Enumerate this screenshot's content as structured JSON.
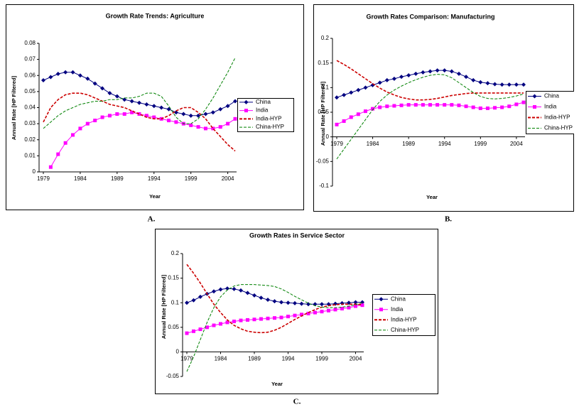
{
  "chart_data": [
    {
      "type": "line",
      "title": "Growth Rate Trends: Agriculture",
      "caption": "A.",
      "xlabel": "Year",
      "ylabel": "Annual Rate [HP Filtered]",
      "x": [
        1979,
        1980,
        1981,
        1982,
        1983,
        1984,
        1985,
        1986,
        1987,
        1988,
        1989,
        1990,
        1991,
        1992,
        1993,
        1994,
        1995,
        1996,
        1997,
        1998,
        1999,
        2000,
        2001,
        2002,
        2003,
        2004,
        2005
      ],
      "xlim": [
        1979,
        2005
      ],
      "xticks": [
        1979,
        1984,
        1989,
        1994,
        1999,
        2004
      ],
      "ylim": [
        0,
        0.08
      ],
      "yticks": [
        0,
        0.01,
        0.02,
        0.03,
        0.04,
        0.05,
        0.06,
        0.07,
        0.08
      ],
      "grid": false,
      "legend": "right",
      "series": [
        {
          "name": "China",
          "color": "#000080",
          "marker": "diamond",
          "dashed": false,
          "values": [
            0.057,
            0.059,
            0.061,
            0.062,
            0.062,
            0.06,
            0.058,
            0.055,
            0.052,
            0.049,
            0.047,
            0.045,
            0.044,
            0.043,
            0.042,
            0.041,
            0.04,
            0.039,
            0.037,
            0.036,
            0.035,
            0.035,
            0.036,
            0.037,
            0.039,
            0.041,
            0.044
          ]
        },
        {
          "name": "India",
          "color": "#ff00ff",
          "marker": "square",
          "dashed": false,
          "values": [
            null,
            0.003,
            0.011,
            0.018,
            0.023,
            0.027,
            0.03,
            0.032,
            0.034,
            0.035,
            0.036,
            0.036,
            0.037,
            0.036,
            0.035,
            0.034,
            0.033,
            0.032,
            0.031,
            0.03,
            0.029,
            0.028,
            0.027,
            0.027,
            0.028,
            0.03,
            0.033
          ]
        },
        {
          "name": "India-HYP",
          "color": "#cc0000",
          "marker": "none",
          "dashed": true,
          "values": [
            0.031,
            0.04,
            0.045,
            0.048,
            0.049,
            0.049,
            0.048,
            0.046,
            0.044,
            0.042,
            0.041,
            0.04,
            0.038,
            0.036,
            0.034,
            0.033,
            0.033,
            0.035,
            0.038,
            0.04,
            0.04,
            0.037,
            0.033,
            0.027,
            0.022,
            0.017,
            0.013
          ]
        },
        {
          "name": "China-HYP",
          "color": "#008000",
          "marker": "none",
          "dashed": true,
          "values": [
            0.027,
            0.031,
            0.035,
            0.038,
            0.04,
            0.042,
            0.043,
            0.044,
            0.044,
            0.045,
            0.045,
            0.046,
            0.046,
            0.047,
            0.049,
            0.049,
            0.047,
            0.041,
            0.034,
            0.03,
            0.03,
            0.033,
            0.039,
            0.046,
            0.054,
            0.062,
            0.071
          ]
        }
      ]
    },
    {
      "type": "line",
      "title": "Growth Rates Comparison: Manufacturing",
      "caption": "B.",
      "xlabel": "Year",
      "ylabel": "Annual Rate [HP Filtered]",
      "x": [
        1979,
        1980,
        1981,
        1982,
        1983,
        1984,
        1985,
        1986,
        1987,
        1988,
        1989,
        1990,
        1991,
        1992,
        1993,
        1994,
        1995,
        1996,
        1997,
        1998,
        1999,
        2000,
        2001,
        2002,
        2003,
        2004,
        2005
      ],
      "xlim": [
        1979,
        2005
      ],
      "xticks": [
        1979,
        1984,
        1989,
        1994,
        1999,
        2004
      ],
      "ylim": [
        -0.1,
        0.2
      ],
      "yticks": [
        -0.1,
        -0.05,
        0,
        0.05,
        0.1,
        0.15,
        0.2
      ],
      "grid": false,
      "legend": "right",
      "series": [
        {
          "name": "China",
          "color": "#000080",
          "marker": "diamond",
          "dashed": false,
          "values": [
            0.08,
            0.085,
            0.09,
            0.095,
            0.1,
            0.105,
            0.11,
            0.115,
            0.118,
            0.122,
            0.125,
            0.128,
            0.131,
            0.133,
            0.135,
            0.135,
            0.133,
            0.128,
            0.122,
            0.115,
            0.111,
            0.109,
            0.107,
            0.106,
            0.106,
            0.106,
            0.106
          ]
        },
        {
          "name": "India",
          "color": "#ff00ff",
          "marker": "square",
          "dashed": false,
          "values": [
            0.025,
            0.032,
            0.04,
            0.046,
            0.052,
            0.057,
            0.06,
            0.062,
            0.063,
            0.064,
            0.065,
            0.065,
            0.065,
            0.065,
            0.065,
            0.065,
            0.065,
            0.064,
            0.062,
            0.06,
            0.058,
            0.058,
            0.059,
            0.06,
            0.062,
            0.066,
            0.07
          ]
        },
        {
          "name": "India-HYP",
          "color": "#cc0000",
          "marker": "none",
          "dashed": true,
          "values": [
            0.155,
            0.147,
            0.138,
            0.128,
            0.118,
            0.108,
            0.099,
            0.091,
            0.085,
            0.08,
            0.077,
            0.075,
            0.075,
            0.076,
            0.078,
            0.081,
            0.084,
            0.086,
            0.088,
            0.089,
            0.089,
            0.089,
            0.089,
            0.089,
            0.089,
            0.089,
            0.089
          ]
        },
        {
          "name": "China-HYP",
          "color": "#008000",
          "marker": "none",
          "dashed": true,
          "values": [
            -0.045,
            -0.025,
            -0.005,
            0.015,
            0.035,
            0.055,
            0.072,
            0.085,
            0.095,
            0.103,
            0.11,
            0.116,
            0.121,
            0.125,
            0.127,
            0.126,
            0.12,
            0.11,
            0.1,
            0.09,
            0.082,
            0.078,
            0.077,
            0.078,
            0.08,
            0.083,
            0.087
          ]
        }
      ]
    },
    {
      "type": "line",
      "title": "Growth Rates in Service Sector",
      "caption": "C.",
      "xlabel": "Year",
      "ylabel": "Annual Rate [HP Filtered]",
      "x": [
        1979,
        1980,
        1981,
        1982,
        1983,
        1984,
        1985,
        1986,
        1987,
        1988,
        1989,
        1990,
        1991,
        1992,
        1993,
        1994,
        1995,
        1996,
        1997,
        1998,
        1999,
        2000,
        2001,
        2002,
        2003,
        2004,
        2005
      ],
      "xlim": [
        1979,
        2005
      ],
      "xticks": [
        1979,
        1984,
        1989,
        1994,
        1999,
        2004
      ],
      "ylim": [
        -0.05,
        0.2
      ],
      "yticks": [
        -0.05,
        0,
        0.05,
        0.1,
        0.15,
        0.2
      ],
      "grid": false,
      "legend": "right",
      "series": [
        {
          "name": "China",
          "color": "#000080",
          "marker": "diamond",
          "dashed": false,
          "values": [
            0.1,
            0.105,
            0.112,
            0.118,
            0.123,
            0.127,
            0.129,
            0.128,
            0.125,
            0.12,
            0.115,
            0.11,
            0.106,
            0.103,
            0.101,
            0.1,
            0.099,
            0.098,
            0.097,
            0.097,
            0.097,
            0.097,
            0.098,
            0.099,
            0.1,
            0.101,
            0.101
          ]
        },
        {
          "name": "India",
          "color": "#ff00ff",
          "marker": "square",
          "dashed": false,
          "values": [
            0.038,
            0.042,
            0.046,
            0.05,
            0.054,
            0.057,
            0.06,
            0.062,
            0.064,
            0.065,
            0.066,
            0.067,
            0.068,
            0.069,
            0.07,
            0.072,
            0.074,
            0.076,
            0.078,
            0.08,
            0.082,
            0.084,
            0.086,
            0.088,
            0.09,
            0.093,
            0.095
          ]
        },
        {
          "name": "India-HYP",
          "color": "#cc0000",
          "marker": "none",
          "dashed": true,
          "values": [
            0.178,
            0.16,
            0.14,
            0.118,
            0.097,
            0.08,
            0.065,
            0.054,
            0.047,
            0.042,
            0.04,
            0.039,
            0.04,
            0.044,
            0.05,
            0.058,
            0.066,
            0.073,
            0.08,
            0.086,
            0.091,
            0.094,
            0.096,
            0.097,
            0.097,
            0.097,
            0.096
          ]
        },
        {
          "name": "China-HYP",
          "color": "#008000",
          "marker": "none",
          "dashed": true,
          "values": [
            -0.04,
            -0.01,
            0.025,
            0.06,
            0.09,
            0.112,
            0.126,
            0.134,
            0.137,
            0.137,
            0.137,
            0.136,
            0.135,
            0.133,
            0.128,
            0.121,
            0.113,
            0.106,
            0.099,
            0.094,
            0.091,
            0.09,
            0.09,
            0.091,
            0.093,
            0.096,
            0.1
          ]
        }
      ]
    }
  ]
}
